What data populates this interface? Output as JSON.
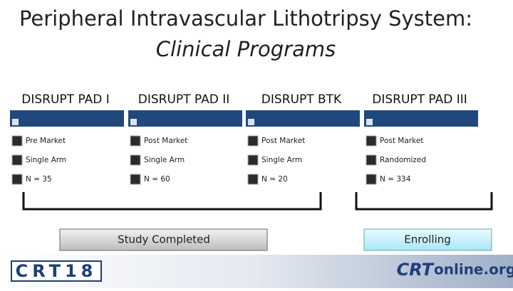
{
  "title": {
    "line1": "Peripheral Intravascular Lithotripsy System:",
    "line2": "Clinical Programs"
  },
  "programs": [
    {
      "name": "DISRUPT PAD I",
      "items": [
        "Pre Market",
        "Single Arm",
        "N = 35"
      ]
    },
    {
      "name": "DISRUPT PAD II",
      "items": [
        "Post Market",
        "Single Arm",
        "N = 60"
      ]
    },
    {
      "name": "DISRUPT BTK",
      "items": [
        "Post Market",
        "Single Arm",
        "N = 20"
      ]
    },
    {
      "name": "DISRUPT PAD III",
      "items": [
        "Post Market",
        "Randomized",
        "N = 334"
      ]
    }
  ],
  "statuses": [
    "Study Completed",
    "Enrolling"
  ],
  "footer": {
    "left_logo": "CRT18",
    "right_logo_a": "CRT",
    "right_logo_b": "online.org"
  }
}
